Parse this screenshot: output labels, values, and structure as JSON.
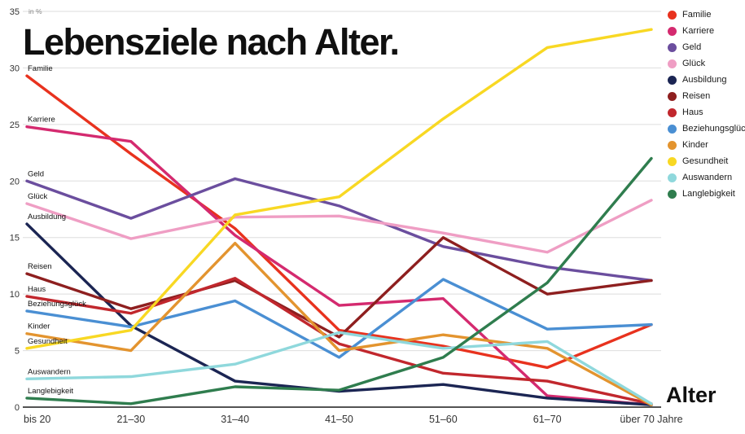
{
  "title": "Lebensziele nach Alter.",
  "axis": {
    "unit_label": "in %",
    "x_label": "Alter"
  },
  "chart_data": {
    "type": "line",
    "title": "Lebensziele nach Alter.",
    "xlabel": "Alter",
    "ylabel": "in %",
    "ylim": [
      0,
      35
    ],
    "ytick_step": 5,
    "grid": true,
    "legend_position": "top-right",
    "categories": [
      "bis 20",
      "21–30",
      "31–40",
      "41–50",
      "51–60",
      "61–70",
      "über 70 Jahre"
    ],
    "series": [
      {
        "name": "Familie",
        "color": "#e8321e",
        "values": [
          29.3,
          22.4,
          15.8,
          6.8,
          5.4,
          3.5,
          7.3
        ]
      },
      {
        "name": "Karriere",
        "color": "#d42a6f",
        "values": [
          24.8,
          23.5,
          15.2,
          9.0,
          9.6,
          1.0,
          0.2
        ]
      },
      {
        "name": "Geld",
        "color": "#6b4e9e",
        "values": [
          20.0,
          16.7,
          20.2,
          17.8,
          14.2,
          12.4,
          11.2
        ]
      },
      {
        "name": "Glück",
        "color": "#ef9ec4",
        "values": [
          18.0,
          14.9,
          16.8,
          16.9,
          15.4,
          13.7,
          18.3
        ]
      },
      {
        "name": "Ausbildung",
        "color": "#1b2553",
        "values": [
          16.2,
          7.2,
          2.3,
          1.4,
          2.0,
          0.8,
          0.2
        ]
      },
      {
        "name": "Reisen",
        "color": "#8e1f1f",
        "values": [
          11.8,
          8.7,
          11.2,
          6.2,
          15.0,
          10.0,
          11.2
        ]
      },
      {
        "name": "Haus",
        "color": "#c1272d",
        "values": [
          9.8,
          8.3,
          11.4,
          5.6,
          3.0,
          2.3,
          0.3
        ]
      },
      {
        "name": "Beziehungsglück",
        "color": "#4a8fd3",
        "values": [
          8.5,
          7.1,
          9.4,
          4.4,
          11.3,
          6.9,
          7.3
        ]
      },
      {
        "name": "Kinder",
        "color": "#e3942f",
        "values": [
          6.5,
          5.0,
          14.5,
          5.0,
          6.4,
          5.2,
          0.2
        ]
      },
      {
        "name": "Gesundheit",
        "color": "#f8d823",
        "values": [
          5.2,
          6.8,
          17.0,
          18.6,
          25.5,
          31.8,
          33.4
        ]
      },
      {
        "name": "Auswandern",
        "color": "#8fd8dc",
        "values": [
          2.5,
          2.7,
          3.8,
          6.6,
          5.2,
          5.8,
          0.3
        ]
      },
      {
        "name": "Langlebigkeit",
        "color": "#2f7d4e",
        "values": [
          0.8,
          0.3,
          1.8,
          1.5,
          4.4,
          11.0,
          22.0
        ]
      }
    ]
  }
}
